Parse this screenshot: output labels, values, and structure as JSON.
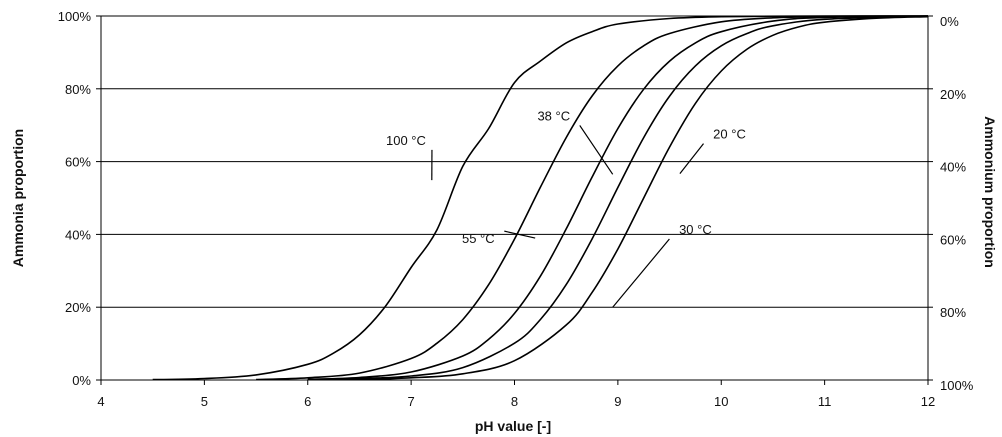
{
  "chart_data": {
    "type": "line",
    "xlabel": "pH value [-]",
    "ylabel": "Ammonia proportion",
    "y2label": "Ammonium proportion",
    "xlim": [
      4,
      12
    ],
    "ylim": [
      0,
      100
    ],
    "x_ticks": [
      "4",
      "5",
      "6",
      "7",
      "8",
      "9",
      "10",
      "11",
      "12"
    ],
    "y_ticks_left": [
      "0%",
      "20%",
      "40%",
      "60%",
      "80%",
      "100%"
    ],
    "y_ticks_right": [
      "100%",
      "80%",
      "60%",
      "40%",
      "20%",
      "0%"
    ],
    "grid": "horizontal",
    "series": [
      {
        "name": "100 °C",
        "pKa": 7.35,
        "x": [
          4.5,
          5.0,
          5.5,
          6.0,
          6.25,
          6.5,
          6.75,
          7.0,
          7.25,
          7.5,
          7.75,
          8.0,
          8.25,
          8.5,
          8.75,
          9.0,
          9.5,
          10.0,
          11.0,
          12.0
        ],
        "y": [
          0.1,
          0.4,
          1.4,
          4.3,
          7.4,
          12.4,
          20.2,
          30.9,
          41.3,
          58.7,
          69.1,
          81.7,
          87.6,
          92.6,
          95.7,
          97.8,
          99.3,
          99.8,
          100,
          100
        ]
      },
      {
        "name": "55 °C",
        "pKa": 8.2,
        "x": [
          5.5,
          6.0,
          6.5,
          7.0,
          7.25,
          7.5,
          7.75,
          8.0,
          8.25,
          8.5,
          8.75,
          9.0,
          9.25,
          9.5,
          10.0,
          10.5,
          11.0,
          12.0
        ],
        "y": [
          0.1,
          0.6,
          1.9,
          5.9,
          10.1,
          16.6,
          26.2,
          38.7,
          52.9,
          66.6,
          78.0,
          86.3,
          91.8,
          95.2,
          98.4,
          99.5,
          99.8,
          100
        ]
      },
      {
        "name": "38 °C",
        "pKa": 8.65,
        "x": [
          6.0,
          6.5,
          7.0,
          7.5,
          7.75,
          8.0,
          8.25,
          8.5,
          8.75,
          9.0,
          9.25,
          9.5,
          9.75,
          10.0,
          10.5,
          11.0,
          12.0
        ],
        "y": [
          0.2,
          0.7,
          2.2,
          6.6,
          11.2,
          18.3,
          28.5,
          41.5,
          55.7,
          69.1,
          79.9,
          87.6,
          92.6,
          95.7,
          98.6,
          99.6,
          100
        ]
      },
      {
        "name": "30 °C",
        "pKa": 8.95,
        "x": [
          6.0,
          6.5,
          7.0,
          7.5,
          8.0,
          8.25,
          8.5,
          8.75,
          9.0,
          9.25,
          9.5,
          9.75,
          10.0,
          10.25,
          10.5,
          11.0,
          12.0
        ],
        "y": [
          0.1,
          0.4,
          1.1,
          3.4,
          10.1,
          16.6,
          26.2,
          38.7,
          52.9,
          66.6,
          78.0,
          86.3,
          91.8,
          95.2,
          97.3,
          99.1,
          100
        ]
      },
      {
        "name": "20 °C",
        "pKa": 9.25,
        "x": [
          6.0,
          6.5,
          7.0,
          7.5,
          8.0,
          8.5,
          8.75,
          9.0,
          9.25,
          9.5,
          9.75,
          10.0,
          10.25,
          10.5,
          10.75,
          11.0,
          11.5,
          12.0
        ],
        "y": [
          0.1,
          0.2,
          0.6,
          1.7,
          5.3,
          15.1,
          24.0,
          36.0,
          50.0,
          64.0,
          76.0,
          84.9,
          90.9,
          94.7,
          97.0,
          98.3,
          99.4,
          99.8
        ]
      }
    ],
    "annotations": [
      {
        "text": "100 °C",
        "label_x": 6.95,
        "label_y": 64.6,
        "point_x": 7.2,
        "point_y": 54.9
      },
      {
        "text": "55 °C",
        "label_x": 7.65,
        "label_y": 37.6,
        "point_x": 8.2,
        "point_y": 39.0
      },
      {
        "text": "38 °C",
        "label_x": 8.38,
        "label_y": 71.3,
        "point_x": 8.95,
        "point_y": 56.5
      },
      {
        "text": "20 °C",
        "label_x": 10.08,
        "label_y": 66.3,
        "point_x": 9.6,
        "point_y": 56.7
      },
      {
        "text": "30 °C",
        "label_x": 9.75,
        "label_y": 40.1,
        "point_x": 8.95,
        "point_y": 20.0
      }
    ]
  }
}
